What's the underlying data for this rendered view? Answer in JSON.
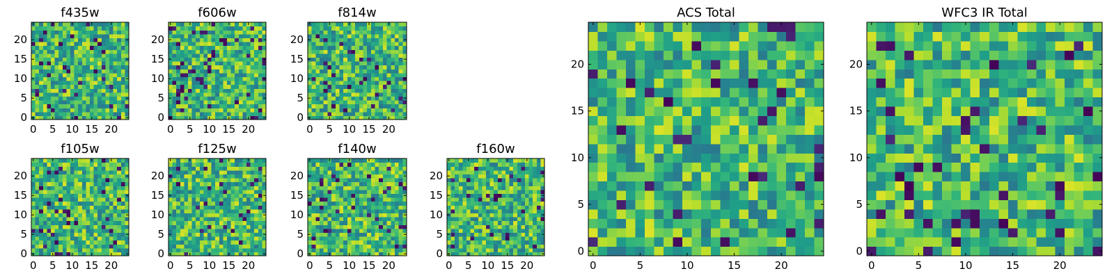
{
  "chart_data": [
    {
      "type": "heatmap",
      "title": "f435w",
      "x_ticks": [
        0,
        5,
        10,
        15,
        20
      ],
      "y_ticks": [
        0,
        5,
        10,
        15,
        20
      ],
      "xlim": [
        -0.5,
        24.5
      ],
      "ylim": [
        -0.5,
        24.5
      ],
      "grid_size": 25,
      "colormap": "viridis"
    },
    {
      "type": "heatmap",
      "title": "f606w",
      "x_ticks": [
        0,
        5,
        10,
        15,
        20
      ],
      "y_ticks": [
        0,
        5,
        10,
        15,
        20
      ],
      "xlim": [
        -0.5,
        24.5
      ],
      "ylim": [
        -0.5,
        24.5
      ],
      "grid_size": 25,
      "colormap": "viridis"
    },
    {
      "type": "heatmap",
      "title": "f814w",
      "x_ticks": [
        0,
        5,
        10,
        15,
        20
      ],
      "y_ticks": [
        0,
        5,
        10,
        15,
        20
      ],
      "xlim": [
        -0.5,
        24.5
      ],
      "ylim": [
        -0.5,
        24.5
      ],
      "grid_size": 25,
      "colormap": "viridis"
    },
    {
      "type": "heatmap",
      "title": "f105w",
      "x_ticks": [
        0,
        5,
        10,
        15,
        20
      ],
      "y_ticks": [
        0,
        5,
        10,
        15,
        20
      ],
      "xlim": [
        -0.5,
        24.5
      ],
      "ylim": [
        -0.5,
        24.5
      ],
      "grid_size": 25,
      "colormap": "viridis"
    },
    {
      "type": "heatmap",
      "title": "f125w",
      "x_ticks": [
        0,
        5,
        10,
        15,
        20
      ],
      "y_ticks": [
        0,
        5,
        10,
        15,
        20
      ],
      "xlim": [
        -0.5,
        24.5
      ],
      "ylim": [
        -0.5,
        24.5
      ],
      "grid_size": 25,
      "colormap": "viridis"
    },
    {
      "type": "heatmap",
      "title": "f140w",
      "x_ticks": [
        0,
        5,
        10,
        15,
        20
      ],
      "y_ticks": [
        0,
        5,
        10,
        15,
        20
      ],
      "xlim": [
        -0.5,
        24.5
      ],
      "ylim": [
        -0.5,
        24.5
      ],
      "grid_size": 25,
      "colormap": "viridis"
    },
    {
      "type": "heatmap",
      "title": "f160w",
      "x_ticks": [
        0,
        5,
        10,
        15,
        20
      ],
      "y_ticks": [
        0,
        5,
        10,
        15,
        20
      ],
      "xlim": [
        -0.5,
        24.5
      ],
      "ylim": [
        -0.5,
        24.5
      ],
      "grid_size": 25,
      "colormap": "viridis"
    },
    {
      "type": "heatmap",
      "title": "ACS Total",
      "x_ticks": [
        0,
        5,
        10,
        15,
        20
      ],
      "y_ticks": [
        0,
        5,
        10,
        15,
        20
      ],
      "xlim": [
        -0.5,
        24.5
      ],
      "ylim": [
        -0.5,
        24.5
      ],
      "grid_size": 25,
      "colormap": "viridis"
    },
    {
      "type": "heatmap",
      "title": "WFC3 IR Total",
      "x_ticks": [
        0,
        5,
        10,
        15,
        20
      ],
      "y_ticks": [
        0,
        5,
        10,
        15,
        20
      ],
      "xlim": [
        -0.5,
        24.5
      ],
      "ylim": [
        -0.5,
        24.5
      ],
      "grid_size": 25,
      "colormap": "viridis"
    }
  ]
}
